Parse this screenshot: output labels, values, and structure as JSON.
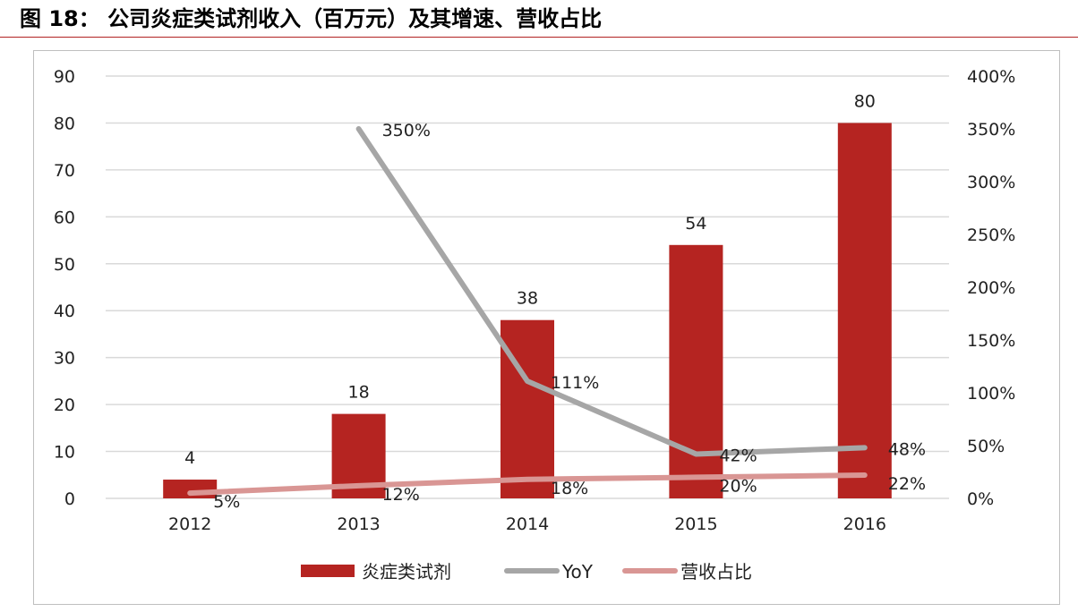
{
  "figure": {
    "title": "图 18： 公司炎症类试剂收入（百万元）及其增速、营收占比"
  },
  "colors": {
    "bar": "#b52421",
    "yoy": "#a6a6a6",
    "share": "#d99694",
    "grid": "#d9d9d9",
    "rule": "#b22222"
  },
  "chart_data": {
    "type": "bar",
    "categories": [
      "2012",
      "2013",
      "2014",
      "2015",
      "2016"
    ],
    "series": [
      {
        "name": "炎症类试剂",
        "type": "bar",
        "axis": "left",
        "values": [
          4,
          18,
          38,
          54,
          80
        ],
        "labels": [
          "4",
          "18",
          "38",
          "54",
          "80"
        ]
      },
      {
        "name": "YoY",
        "type": "line",
        "axis": "right",
        "values": [
          null,
          350,
          111,
          42,
          48
        ],
        "labels": [
          "",
          "350%",
          "111%",
          "42%",
          "48%"
        ]
      },
      {
        "name": "营收占比",
        "type": "line",
        "axis": "right",
        "values": [
          5,
          12,
          18,
          20,
          22
        ],
        "labels": [
          "5%",
          "12%",
          "18%",
          "20%",
          "22%"
        ]
      }
    ],
    "y_left": {
      "min": 0,
      "max": 90,
      "ticks": [
        "0",
        "10",
        "20",
        "30",
        "40",
        "50",
        "60",
        "70",
        "80",
        "90"
      ]
    },
    "y_right": {
      "min": 0,
      "max": 400,
      "ticks": [
        "0%",
        "50%",
        "100%",
        "150%",
        "200%",
        "250%",
        "300%",
        "350%",
        "400%"
      ]
    },
    "grid": true,
    "legend": "bottom"
  }
}
